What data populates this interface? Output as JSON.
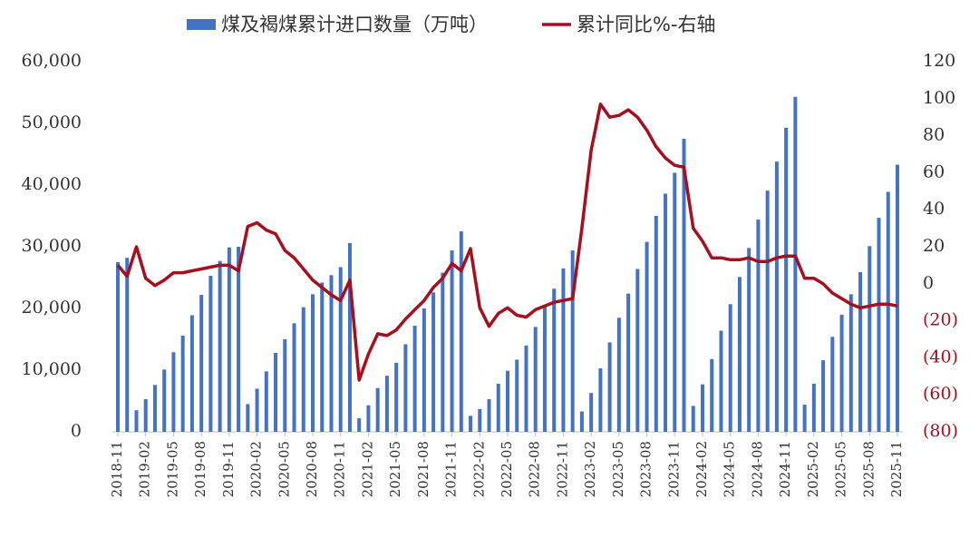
{
  "chart_data": {
    "type": "bar_line",
    "categories": [
      "2018-11",
      null,
      null,
      "2019-02",
      null,
      null,
      "2019-05",
      null,
      null,
      "2019-08",
      null,
      null,
      "2019-11",
      null,
      null,
      "2020-02",
      null,
      null,
      "2020-05",
      null,
      null,
      "2020-08",
      null,
      null,
      "2020-11",
      null,
      null,
      "2021-02",
      null,
      null,
      "2021-05",
      null,
      null,
      "2021-08",
      null,
      null,
      "2021-11",
      null,
      null,
      "2022-02",
      null,
      null,
      "2022-05",
      null,
      null,
      "2022-08",
      null,
      null,
      "2022-11",
      null,
      null,
      "2023-02",
      null,
      null,
      "2023-05",
      null,
      null,
      "2023-08",
      null,
      null,
      "2023-11",
      null,
      null,
      "2024-02",
      null,
      null,
      "2024-05",
      null,
      null,
      "2024-08",
      null,
      null,
      "2024-11",
      null,
      null,
      "2025-02",
      null,
      null,
      "2025-05",
      null,
      null,
      "2025-08",
      null,
      null,
      "2025-11"
    ],
    "series": [
      {
        "name": "煤及褐煤累计进口数量（万吨）",
        "color": "#4472c4",
        "type": "bar",
        "values": [
          27500,
          28200,
          3500,
          5300,
          7600,
          10100,
          12900,
          15600,
          18900,
          22200,
          25300,
          27700,
          29900,
          30000,
          4500,
          7000,
          9800,
          12800,
          15000,
          17600,
          20200,
          22300,
          24200,
          25400,
          26700,
          30600,
          2200,
          4300,
          7100,
          9100,
          11200,
          14200,
          17200,
          20000,
          22600,
          25800,
          29400,
          32500,
          2600,
          3700,
          5300,
          7800,
          9900,
          11700,
          14000,
          17000,
          20300,
          23200,
          26500,
          29400,
          3300,
          6300,
          10300,
          14500,
          18500,
          22400,
          26400,
          30800,
          35000,
          38600,
          42000,
          47500,
          4200,
          7700,
          11800,
          16400,
          20700,
          25100,
          29800,
          34400,
          39100,
          43800,
          49300,
          54300,
          4400,
          7800,
          11600,
          15400,
          19000,
          22300,
          25900,
          30100,
          34700,
          38900,
          43300
        ]
      },
      {
        "name": "累计同比%-右轴",
        "color": "#a50f1e",
        "type": "line",
        "axis": "y2",
        "values": [
          10,
          4,
          20,
          3,
          -1,
          2,
          6,
          6,
          7,
          8,
          9,
          10,
          10,
          7,
          31,
          33,
          29,
          27,
          18,
          14,
          8,
          2,
          -2,
          -6,
          -9,
          2,
          -52,
          -38,
          -27,
          -28,
          -25,
          -19,
          -14,
          -9,
          -2,
          3,
          11,
          7,
          19,
          -13,
          -23,
          -16,
          -13,
          -17,
          -18,
          -14,
          -12,
          -10,
          -9,
          -8,
          30,
          72,
          97,
          90,
          91,
          94,
          90,
          83,
          74,
          68,
          64,
          63,
          30,
          23,
          14,
          14,
          13,
          13,
          14,
          12,
          12,
          14,
          15,
          15,
          3,
          3,
          0,
          -5,
          -8,
          -11,
          -13,
          -12,
          -11,
          -11,
          -12
        ]
      }
    ],
    "ylim": [
      0,
      60000
    ],
    "yticks": [
      {
        "value": 0,
        "label": "0"
      },
      {
        "value": 10000,
        "label": "10,000"
      },
      {
        "value": 20000,
        "label": "20,000"
      },
      {
        "value": 30000,
        "label": "30,000"
      },
      {
        "value": 40000,
        "label": "40,000"
      },
      {
        "value": 50000,
        "label": "50,000"
      },
      {
        "value": 60000,
        "label": "60,000"
      }
    ],
    "y2lim": [
      -80,
      120
    ],
    "y2ticks": [
      {
        "value": -80,
        "label": "(80)"
      },
      {
        "value": -60,
        "label": "(60)"
      },
      {
        "value": -40,
        "label": "(40)"
      },
      {
        "value": -20,
        "label": "(20)"
      },
      0,
      20,
      40,
      60,
      80,
      100,
      120
    ],
    "y2_negative_color": "#a50f1e",
    "legend": "top",
    "grid": false
  }
}
